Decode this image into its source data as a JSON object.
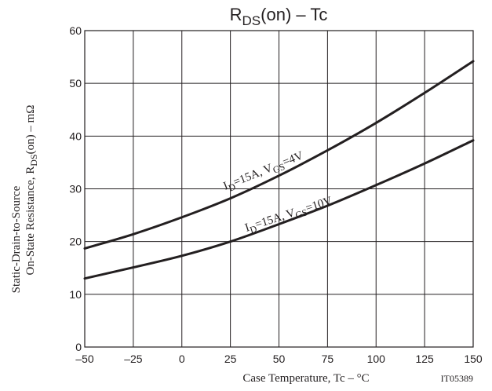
{
  "chart_data": {
    "type": "line",
    "title": {
      "main": "R",
      "sub": "DS",
      "tail": "(on)  –  Tc"
    },
    "xlabel": "Case Temperature,  Tc  –  °C",
    "ylabel": {
      "line1": "Static-Drain-to-Source",
      "line2_main": "On-State Resistance, R",
      "line2_sub": "DS",
      "line2_tail": "(on)  –  mΩ"
    },
    "code": "IT05389",
    "xlim": [
      -50,
      150
    ],
    "ylim": [
      0,
      60
    ],
    "xticks": [
      "–50",
      "–25",
      "0",
      "25",
      "50",
      "75",
      "100",
      "125",
      "150"
    ],
    "yticks": [
      "0",
      "10",
      "20",
      "30",
      "40",
      "50",
      "60"
    ],
    "grid": true,
    "series": [
      {
        "name": "ID=15A, VGS=4V",
        "label": {
          "a": "I",
          "a_sub": "D",
          "b": "=15A, V",
          "b_sub": "GS",
          "c": "=4V"
        },
        "x": [
          -50,
          -25,
          0,
          25,
          50,
          75,
          100,
          125,
          150
        ],
        "y": [
          18.7,
          21.4,
          24.6,
          28.2,
          32.5,
          37.3,
          42.5,
          48.2,
          54.2
        ]
      },
      {
        "name": "ID=15A, VGS=10V",
        "label": {
          "a": "I",
          "a_sub": "D",
          "b": "=15A, V",
          "b_sub": "GS",
          "c": "=10V"
        },
        "x": [
          -50,
          -25,
          0,
          25,
          50,
          75,
          100,
          125,
          150
        ],
        "y": [
          13.0,
          15.1,
          17.3,
          20.0,
          23.3,
          26.8,
          30.7,
          34.8,
          39.2
        ]
      }
    ]
  }
}
